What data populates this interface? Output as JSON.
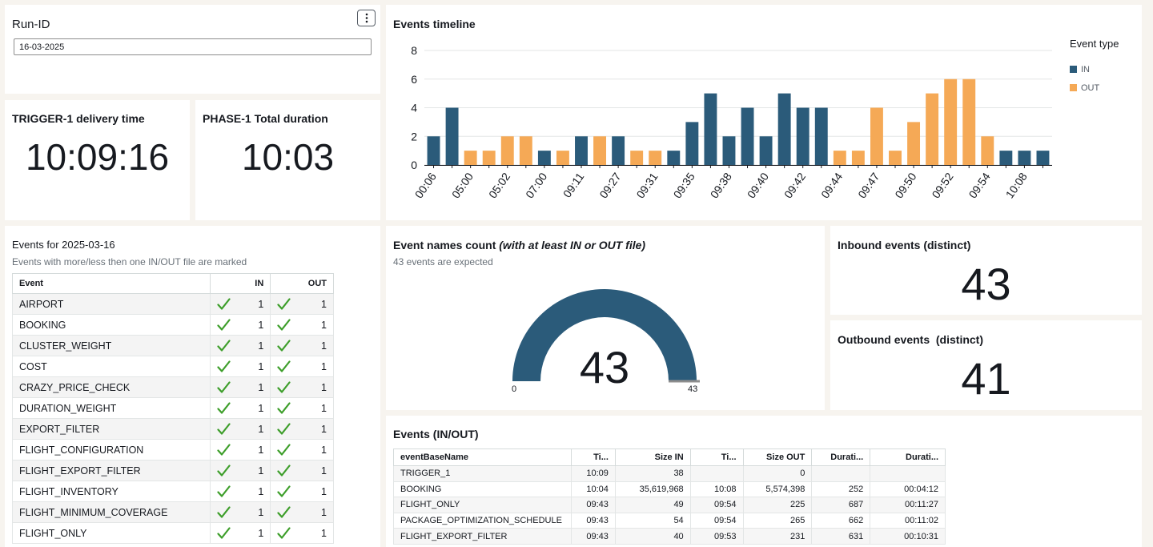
{
  "runid": {
    "label": "Run-ID",
    "value": "16-03-2025"
  },
  "trigger": {
    "title": "TRIGGER-1 delivery time",
    "value": "10:09:16"
  },
  "phase": {
    "title": "PHASE-1 Total duration",
    "value": "10:03"
  },
  "timeline": {
    "title": "Events timeline"
  },
  "chart_data": {
    "type": "bar",
    "title": "Events timeline",
    "legend_title": "Event type",
    "legend_position": "right",
    "grid": true,
    "ylim": [
      0,
      8
    ],
    "yticks": [
      0,
      2,
      4,
      6,
      8
    ],
    "xticks": [
      "00:06",
      "05:00",
      "05:02",
      "07:00",
      "09:11",
      "09:27",
      "09:31",
      "09:35",
      "09:38",
      "09:40",
      "09:42",
      "09:44",
      "09:47",
      "09:50",
      "09:52",
      "09:54",
      "10:08"
    ],
    "series": [
      {
        "name": "IN",
        "color": "#2b5b7a"
      },
      {
        "name": "OUT",
        "color": "#f5a956"
      }
    ],
    "bars": [
      {
        "type": "IN",
        "value": 2
      },
      {
        "type": "IN",
        "value": 4
      },
      {
        "type": "OUT",
        "value": 1
      },
      {
        "type": "OUT",
        "value": 1
      },
      {
        "type": "OUT",
        "value": 2
      },
      {
        "type": "OUT",
        "value": 2
      },
      {
        "type": "IN",
        "value": 1
      },
      {
        "type": "OUT",
        "value": 1
      },
      {
        "type": "IN",
        "value": 2
      },
      {
        "type": "OUT",
        "value": 2
      },
      {
        "type": "IN",
        "value": 2
      },
      {
        "type": "OUT",
        "value": 1
      },
      {
        "type": "OUT",
        "value": 1
      },
      {
        "type": "IN",
        "value": 1
      },
      {
        "type": "IN",
        "value": 3
      },
      {
        "type": "IN",
        "value": 5
      },
      {
        "type": "IN",
        "value": 2
      },
      {
        "type": "IN",
        "value": 4
      },
      {
        "type": "IN",
        "value": 2
      },
      {
        "type": "IN",
        "value": 5
      },
      {
        "type": "IN",
        "value": 4
      },
      {
        "type": "IN",
        "value": 4
      },
      {
        "type": "OUT",
        "value": 1
      },
      {
        "type": "OUT",
        "value": 1
      },
      {
        "type": "OUT",
        "value": 4
      },
      {
        "type": "OUT",
        "value": 1
      },
      {
        "type": "OUT",
        "value": 3
      },
      {
        "type": "OUT",
        "value": 5
      },
      {
        "type": "OUT",
        "value": 6
      },
      {
        "type": "OUT",
        "value": 6
      },
      {
        "type": "OUT",
        "value": 2
      },
      {
        "type": "IN",
        "value": 1
      },
      {
        "type": "IN",
        "value": 1
      },
      {
        "type": "IN",
        "value": 1
      }
    ]
  },
  "events_list": {
    "title": "Events for 2025-03-16",
    "subtitle": "Events with more/less then one IN/OUT file are marked",
    "headers": {
      "event": "Event",
      "in": "IN",
      "out": "OUT"
    },
    "rows": [
      {
        "event": "AIRPORT",
        "in": "1",
        "out": "1"
      },
      {
        "event": "BOOKING",
        "in": "1",
        "out": "1"
      },
      {
        "event": "CLUSTER_WEIGHT",
        "in": "1",
        "out": "1"
      },
      {
        "event": "COST",
        "in": "1",
        "out": "1"
      },
      {
        "event": "CRAZY_PRICE_CHECK",
        "in": "1",
        "out": "1"
      },
      {
        "event": "DURATION_WEIGHT",
        "in": "1",
        "out": "1"
      },
      {
        "event": "EXPORT_FILTER",
        "in": "1",
        "out": "1"
      },
      {
        "event": "FLIGHT_CONFIGURATION",
        "in": "1",
        "out": "1"
      },
      {
        "event": "FLIGHT_EXPORT_FILTER",
        "in": "1",
        "out": "1"
      },
      {
        "event": "FLIGHT_INVENTORY",
        "in": "1",
        "out": "1"
      },
      {
        "event": "FLIGHT_MINIMUM_COVERAGE",
        "in": "1",
        "out": "1"
      },
      {
        "event": "FLIGHT_ONLY",
        "in": "1",
        "out": "1"
      }
    ]
  },
  "gauge": {
    "title": "Event names count",
    "title_italic": "(with at least IN or OUT file)",
    "subtitle": "43 events are expected",
    "value": "43",
    "min_label": "0",
    "max_label": "43",
    "fraction": 1.0,
    "fill_color": "#2b5b7a"
  },
  "inbound": {
    "title": "Inbound events (distinct)",
    "value": "43"
  },
  "outbound": {
    "title": "Outbound events  (distinct)",
    "value": "41"
  },
  "io_table": {
    "title": "Events (IN/OUT)",
    "headers": [
      "eventBaseName",
      "Ti...",
      "Size IN",
      "Ti...",
      "Size OUT",
      "Durati...",
      "Durati..."
    ],
    "rows": [
      [
        "TRIGGER_1",
        "10:09",
        "38",
        "",
        "0",
        "",
        ""
      ],
      [
        "BOOKING",
        "10:04",
        "35,619,968",
        "10:08",
        "5,574,398",
        "252",
        "00:04:12"
      ],
      [
        "FLIGHT_ONLY",
        "09:43",
        "49",
        "09:54",
        "225",
        "687",
        "00:11:27"
      ],
      [
        "PACKAGE_OPTIMIZATION_SCHEDULE",
        "09:43",
        "54",
        "09:54",
        "265",
        "662",
        "00:11:02"
      ],
      [
        "FLIGHT_EXPORT_FILTER",
        "09:43",
        "40",
        "09:53",
        "231",
        "631",
        "00:10:31"
      ]
    ]
  }
}
